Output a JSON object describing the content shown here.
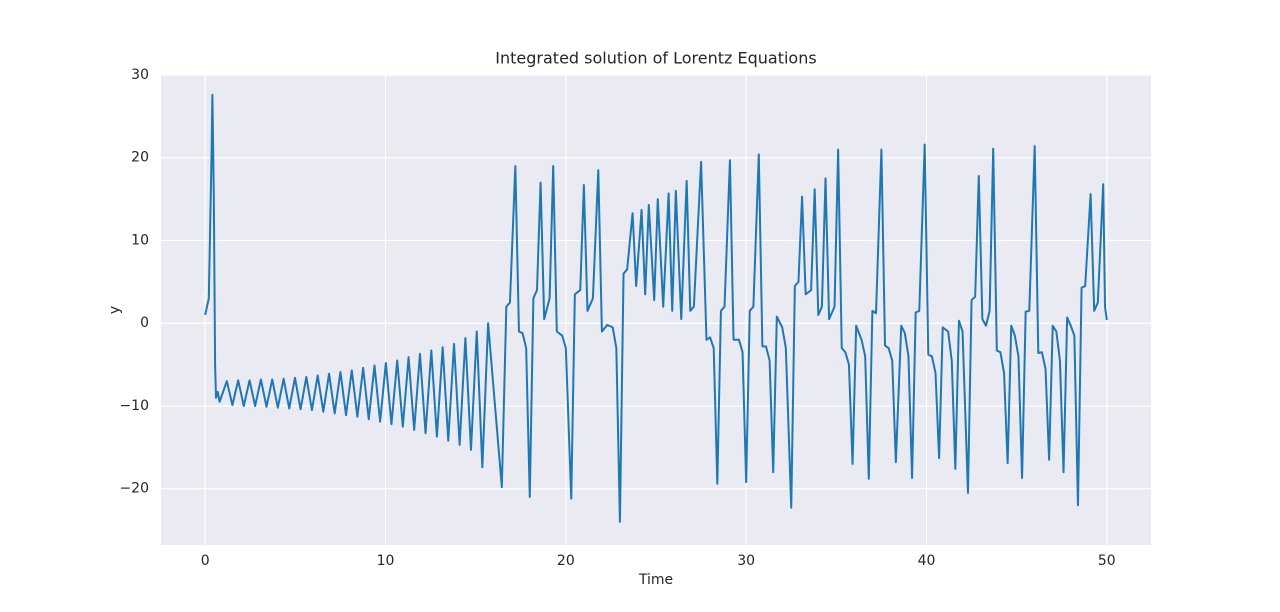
{
  "chart_data": {
    "type": "line",
    "title": "Integrated solution of Lorentz Equations",
    "x_label": "Time",
    "y_label": "y",
    "xlim": [
      -2.45,
      52.45
    ],
    "ylim": [
      -26.8,
      30
    ],
    "grid": true,
    "background": "#eaeaf2",
    "xticks": [
      0,
      10,
      20,
      30,
      40,
      50
    ],
    "yticks": [
      {
        "value": -20,
        "label": "−20"
      },
      {
        "value": -10,
        "label": "−10"
      },
      0,
      10,
      20,
      30
    ],
    "series": [
      {
        "color": "#1f77b4",
        "x": [
          0,
          0.2,
          0.35,
          0.4,
          0.48,
          0.55,
          0.6,
          0.7,
          0.8,
          1.2,
          1.51,
          1.83,
          2.14,
          2.46,
          2.77,
          3.09,
          3.4,
          3.72,
          4.03,
          4.35,
          4.66,
          4.98,
          5.29,
          5.61,
          5.92,
          6.24,
          6.55,
          6.87,
          7.18,
          7.5,
          7.81,
          8.13,
          8.44,
          8.76,
          9.07,
          9.39,
          9.7,
          10.02,
          10.33,
          10.65,
          10.96,
          11.28,
          11.59,
          11.91,
          12.22,
          12.54,
          12.85,
          13.17,
          13.48,
          13.8,
          14.11,
          14.43,
          14.74,
          15.06,
          15.37,
          15.69,
          16.45,
          16.7,
          16.9,
          17.2,
          17.4,
          17.6,
          17.8,
          18.0,
          18.2,
          18.4,
          18.6,
          18.8,
          19.1,
          19.3,
          19.5,
          19.8,
          20.0,
          20.3,
          20.5,
          20.8,
          21.0,
          21.2,
          21.5,
          21.8,
          22.0,
          22.3,
          22.6,
          22.8,
          23.0,
          23.2,
          23.4,
          23.7,
          23.9,
          24.2,
          24.4,
          24.6,
          24.9,
          25.1,
          25.4,
          25.7,
          25.9,
          26.1,
          26.4,
          26.7,
          26.9,
          27.1,
          27.5,
          27.8,
          28.0,
          28.2,
          28.4,
          28.6,
          28.8,
          29.1,
          29.3,
          29.6,
          29.8,
          30.0,
          30.2,
          30.4,
          30.7,
          30.9,
          31.1,
          31.3,
          31.5,
          31.7,
          32.0,
          32.2,
          32.5,
          32.7,
          32.9,
          33.1,
          33.3,
          33.6,
          33.8,
          34.0,
          34.2,
          34.4,
          34.6,
          34.9,
          35.1,
          35.3,
          35.5,
          35.7,
          35.9,
          36.1,
          36.4,
          36.6,
          36.8,
          37.0,
          37.2,
          37.5,
          37.7,
          37.9,
          38.1,
          38.3,
          38.6,
          38.8,
          39.0,
          39.2,
          39.4,
          39.6,
          39.9,
          40.1,
          40.3,
          40.5,
          40.7,
          40.9,
          41.2,
          41.4,
          41.6,
          41.8,
          42.0,
          42.3,
          42.5,
          42.7,
          42.9,
          43.1,
          43.3,
          43.5,
          43.7,
          43.9,
          44.1,
          44.3,
          44.5,
          44.7,
          44.9,
          45.1,
          45.3,
          45.5,
          45.7,
          46.0,
          46.2,
          46.4,
          46.6,
          46.8,
          47.0,
          47.2,
          47.4,
          47.6,
          47.8,
          48.0,
          48.2,
          48.4,
          48.6,
          48.8,
          49.1,
          49.3,
          49.5,
          49.8,
          49.9,
          50.0
        ],
        "values": [
          1,
          3,
          20,
          27.6,
          15,
          -5,
          -9,
          -8.3,
          -9.5,
          -7,
          -9.9,
          -6.9,
          -10,
          -6.9,
          -10,
          -6.8,
          -10.1,
          -6.8,
          -10.2,
          -6.7,
          -10.3,
          -6.6,
          -10.4,
          -6.5,
          -10.5,
          -6.3,
          -10.7,
          -6.1,
          -10.9,
          -5.9,
          -11.1,
          -5.7,
          -11.3,
          -5.4,
          -11.6,
          -5.1,
          -11.9,
          -4.8,
          -12.2,
          -4.5,
          -12.5,
          -4.1,
          -12.9,
          -3.7,
          -13.3,
          -3.3,
          -13.7,
          -2.9,
          -14.2,
          -2.5,
          -14.7,
          -1.8,
          -15.3,
          -1,
          -17.4,
          0,
          -19.8,
          2,
          2.5,
          19,
          -1,
          -1.2,
          -3,
          -21,
          3,
          4,
          17,
          0.5,
          3,
          19,
          -1,
          -1.5,
          -3,
          -21.2,
          3.5,
          4,
          16.7,
          1.5,
          3,
          18.5,
          -1,
          -0.2,
          -0.5,
          -3,
          -24,
          6,
          6.5,
          13.3,
          4.5,
          13.7,
          3.5,
          14.3,
          2.8,
          15,
          2,
          15.7,
          1.5,
          16,
          0.5,
          17.2,
          1.5,
          2,
          19.5,
          -2,
          -1.7,
          -3,
          -19.4,
          1.5,
          2,
          19.7,
          -2,
          -2,
          -3.5,
          -19.2,
          1.5,
          2,
          20.4,
          -2.8,
          -2.8,
          -4.5,
          -18,
          0.8,
          -0.5,
          -3,
          -22.3,
          4.5,
          5,
          15.3,
          3.5,
          4,
          16.2,
          1,
          2,
          17.5,
          0.5,
          2,
          21,
          -3,
          -3.5,
          -5,
          -17,
          -0.3,
          -2,
          -4,
          -18.8,
          1.5,
          1.2,
          21,
          -2.7,
          -3,
          -4.5,
          -16.8,
          -0.3,
          -1.2,
          -4,
          -18.7,
          1.3,
          1.5,
          21.6,
          -3.8,
          -4,
          -6,
          -16.3,
          -0.5,
          -1,
          -4.5,
          -17.6,
          0.3,
          -1,
          -20.5,
          2.8,
          3.2,
          17.8,
          0.5,
          -0.3,
          1.5,
          21.1,
          -3.3,
          -3.5,
          -6,
          -16.9,
          -0.3,
          -1.5,
          -4,
          -18.7,
          1.4,
          1.5,
          21.4,
          -3.6,
          -3.5,
          -5.5,
          -16.5,
          -0.3,
          -1,
          -4.5,
          -18,
          0.7,
          -0.3,
          -1.5,
          -22,
          4.3,
          4.5,
          15.6,
          1.5,
          2.5,
          16.8,
          2,
          0.4
        ]
      }
    ]
  }
}
